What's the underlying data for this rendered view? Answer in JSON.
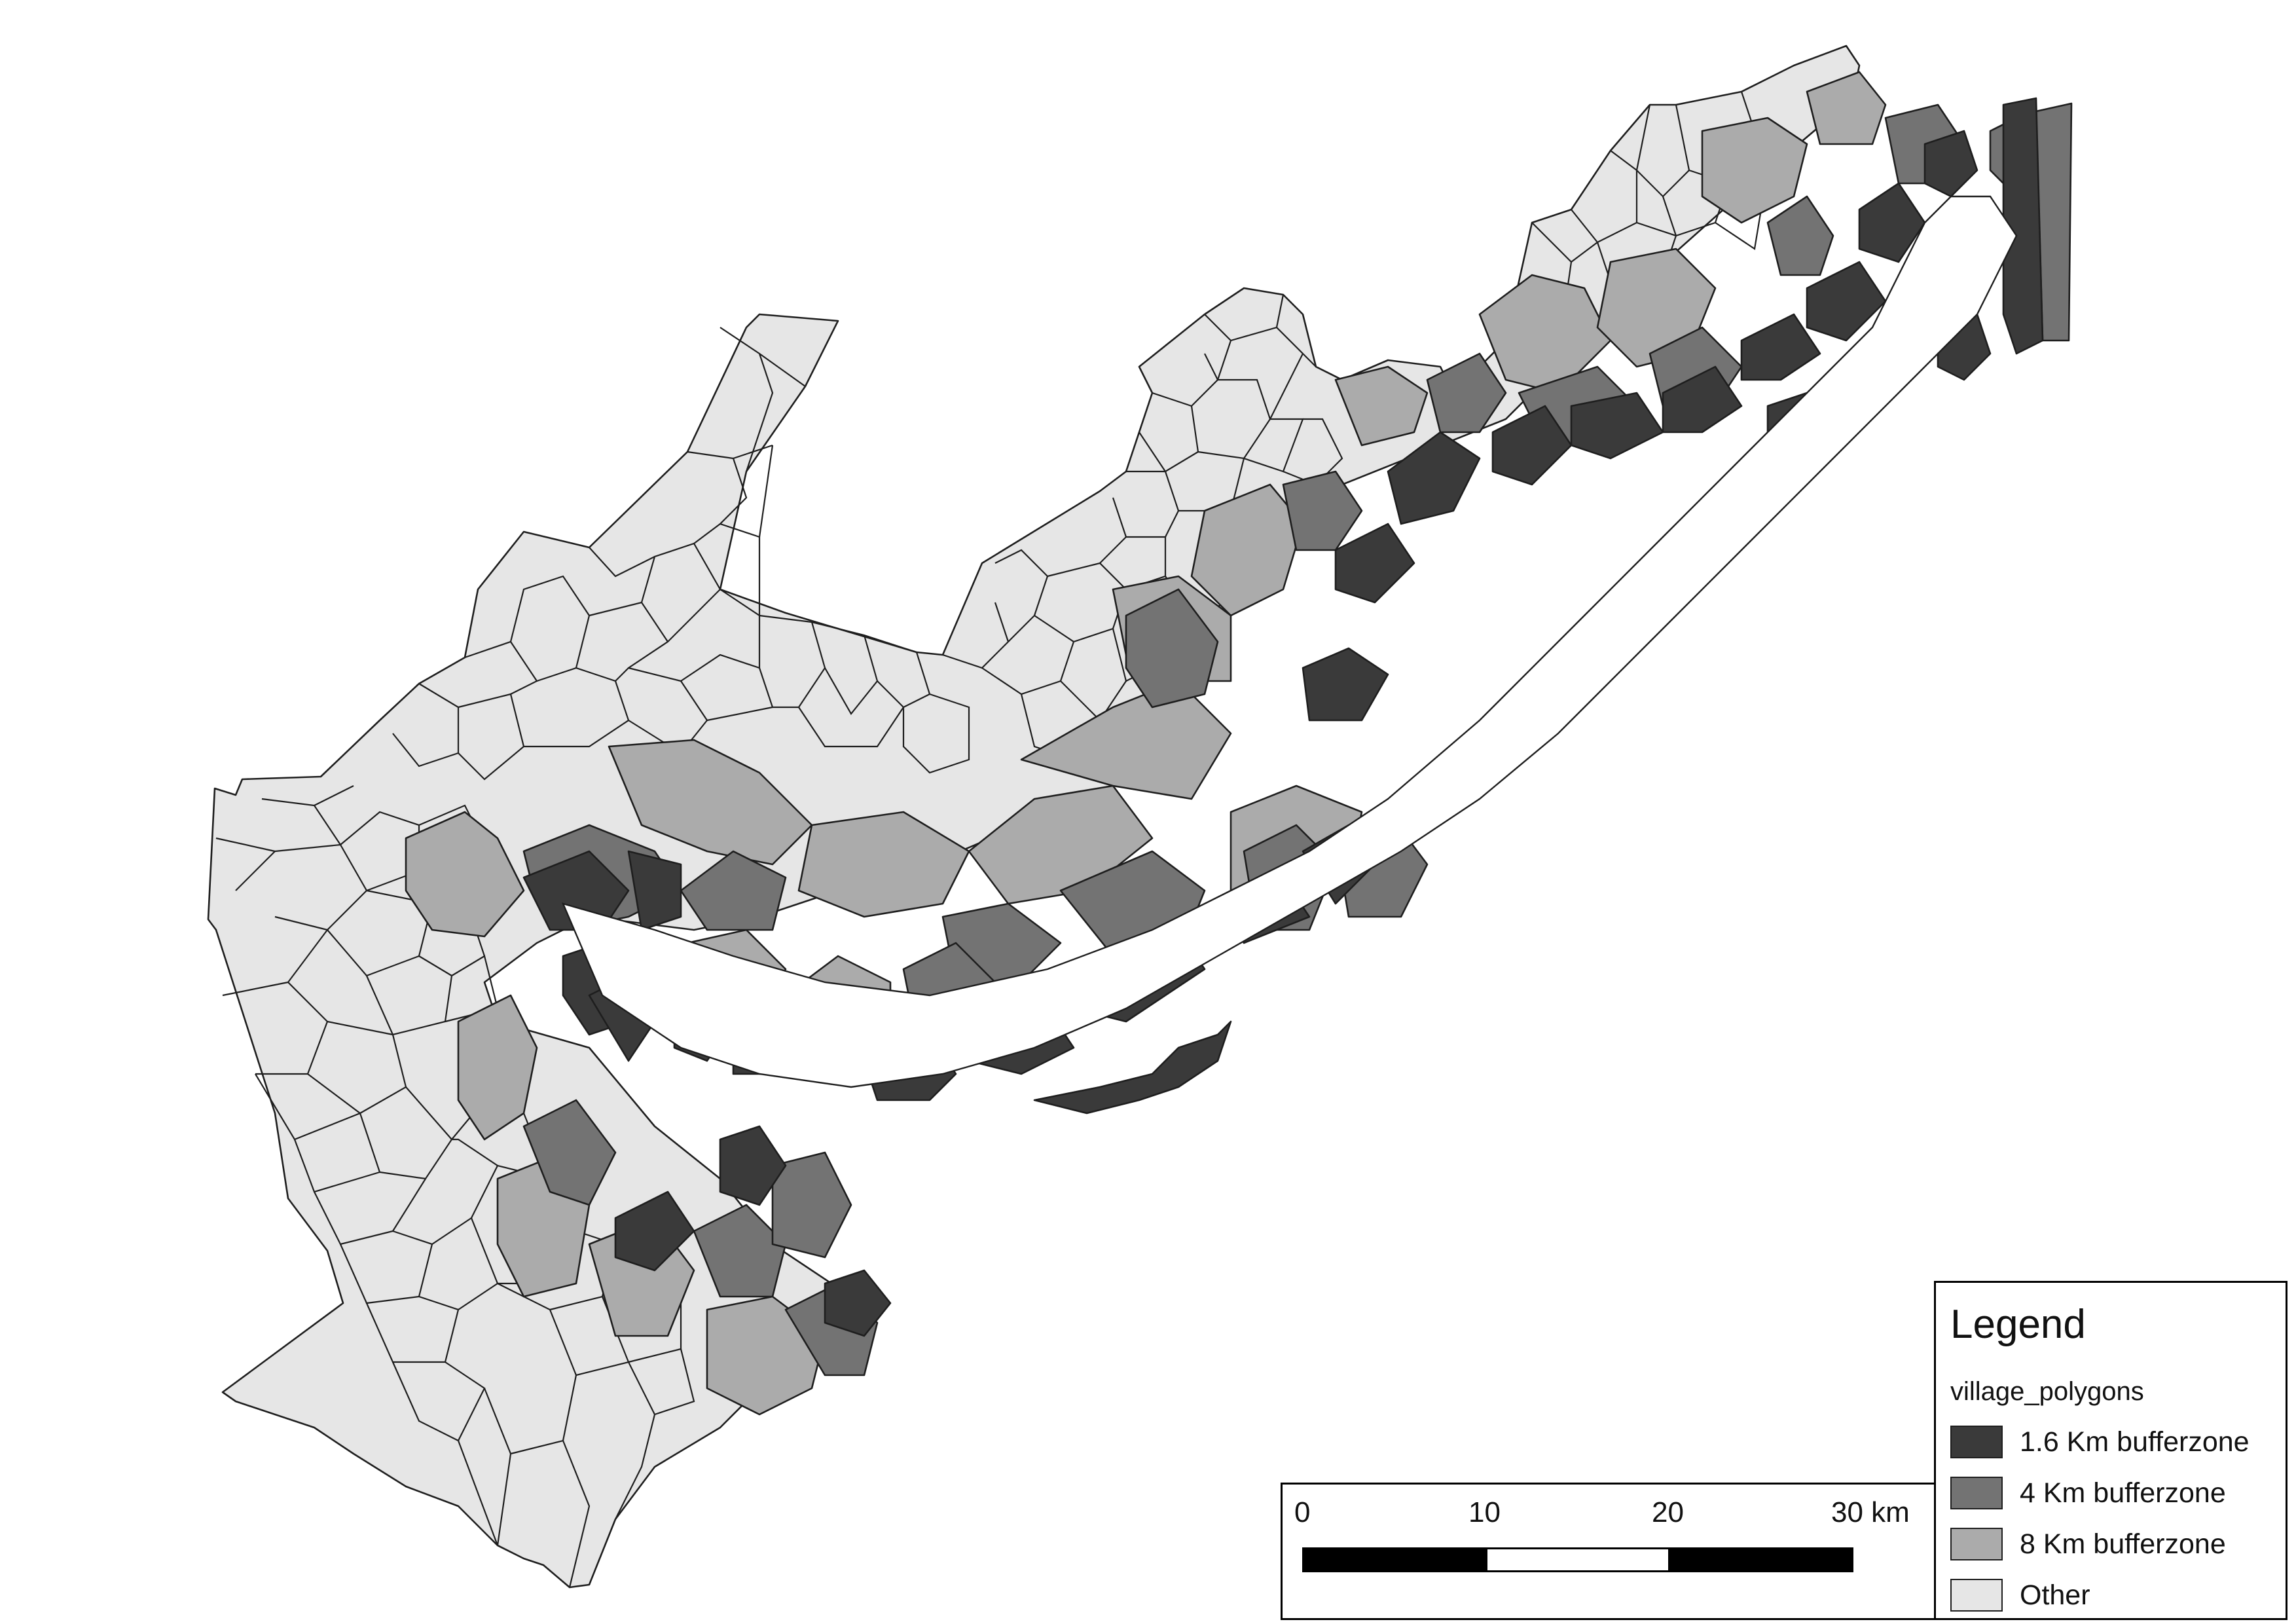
{
  "legend": {
    "title": "Legend",
    "layer_name": "village_polygons",
    "items": [
      {
        "label": "1.6 Km bufferzone",
        "color": "#3a3a3a"
      },
      {
        "label": "4 Km bufferzone",
        "color": "#737373"
      },
      {
        "label": "8 Km bufferzone",
        "color": "#ababab"
      },
      {
        "label": "Other",
        "color": "#e6e6e6"
      }
    ]
  },
  "scalebar": {
    "ticks": [
      "0",
      "10",
      "20",
      "30 km"
    ],
    "colors": {
      "dark": "#000000",
      "light": "#ffffff"
    }
  },
  "map": {
    "colors": {
      "stroke": "#1e1e1e",
      "background": "#ffffff"
    }
  }
}
